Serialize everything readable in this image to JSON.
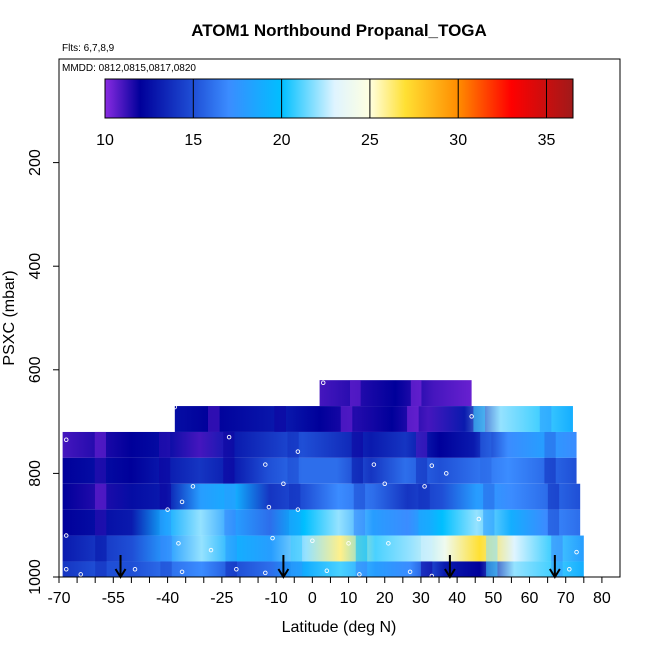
{
  "chart_data": {
    "type": "heatmap",
    "title": "ATOM1 Northbound Propanal_TOGA",
    "flights_label": "Flts: 6,7,8,9",
    "dates_label": "MMDD: 0812,0815,0817,0820",
    "xlabel": "Latitude (deg N)",
    "ylabel": "PSXC (mbar)",
    "xlim": [
      -70,
      85
    ],
    "ylim": [
      1000,
      0
    ],
    "x_ticks": [
      -70,
      -55,
      -40,
      -25,
      -10,
      0,
      10,
      20,
      30,
      40,
      50,
      60,
      70,
      80
    ],
    "y_ticks": [
      200,
      400,
      600,
      800,
      1000
    ],
    "colorbar": {
      "min": 10,
      "max": 36.5,
      "ticks": [
        10,
        15,
        20,
        25,
        30,
        35
      ],
      "stops": [
        {
          "v": 10,
          "c": "#8a2be2"
        },
        {
          "v": 12,
          "c": "#00009a"
        },
        {
          "v": 15,
          "c": "#1f4fd6"
        },
        {
          "v": 17,
          "c": "#3b8cff"
        },
        {
          "v": 20,
          "c": "#00bfff"
        },
        {
          "v": 23,
          "c": "#dff4ff"
        },
        {
          "v": 25,
          "c": "#ffffe0"
        },
        {
          "v": 27,
          "c": "#ffe033"
        },
        {
          "v": 30,
          "c": "#ff8c00"
        },
        {
          "v": 33,
          "c": "#ff0000"
        },
        {
          "v": 36.5,
          "c": "#a01a1a"
        }
      ]
    },
    "bands": [
      {
        "p_top": 620,
        "p_bot": 670,
        "x0": 2,
        "x1": 44,
        "values": [
          11,
          11.5,
          12,
          11,
          10.5
        ]
      },
      {
        "p_top": 670,
        "p_bot": 720,
        "x0": -38,
        "x1": 72,
        "values": [
          12.5,
          12,
          12.5,
          13,
          12,
          11.5,
          12,
          11,
          13,
          22,
          21,
          19
        ]
      },
      {
        "p_top": 720,
        "p_bot": 770,
        "x0": -69,
        "x1": 73,
        "values": [
          11,
          11.5,
          12,
          12.5,
          11,
          13,
          14,
          15,
          14,
          13,
          14,
          12,
          13,
          17,
          18,
          17
        ]
      },
      {
        "p_top": 770,
        "p_bot": 820,
        "x0": -69,
        "x1": 73,
        "values": [
          12,
          12.5,
          12,
          13,
          14,
          13,
          15,
          16,
          16,
          14,
          16,
          15,
          16,
          17,
          16,
          15
        ]
      },
      {
        "p_top": 820,
        "p_bot": 870,
        "x0": -69,
        "x1": 74,
        "values": [
          12,
          11.5,
          12.5,
          13,
          18,
          19,
          14,
          15,
          17,
          16,
          14,
          15,
          18,
          17,
          16,
          15
        ]
      },
      {
        "p_top": 870,
        "p_bot": 920,
        "x0": -69,
        "x1": 74,
        "values": [
          12,
          12.5,
          13,
          19,
          22,
          18,
          16,
          20,
          22,
          18,
          17,
          20,
          22,
          19,
          17,
          16
        ]
      },
      {
        "p_top": 920,
        "p_bot": 970,
        "x0": -69,
        "x1": 75,
        "values": [
          13,
          14,
          15,
          18,
          22,
          19,
          18,
          22,
          26,
          21,
          22,
          24,
          27,
          23,
          21,
          18
        ]
      },
      {
        "p_top": 970,
        "p_bot": 1000,
        "x0": -69,
        "x1": 75,
        "values": [
          14,
          15,
          15,
          16,
          17,
          15,
          16,
          19,
          21,
          18,
          17,
          13,
          12,
          22,
          21,
          19
        ]
      }
    ],
    "arrows_lat": [
      -53,
      -8,
      38,
      67
    ],
    "sample_points": [
      {
        "lat": -38,
        "p": 672
      },
      {
        "lat": 3,
        "p": 625
      },
      {
        "lat": 44,
        "p": 690
      },
      {
        "lat": -68,
        "p": 735
      },
      {
        "lat": -23,
        "p": 730
      },
      {
        "lat": -4,
        "p": 758
      },
      {
        "lat": -13,
        "p": 783
      },
      {
        "lat": 17,
        "p": 783
      },
      {
        "lat": 33,
        "p": 785
      },
      {
        "lat": 37,
        "p": 800
      },
      {
        "lat": -8,
        "p": 820
      },
      {
        "lat": 20,
        "p": 820
      },
      {
        "lat": 31,
        "p": 825
      },
      {
        "lat": -33,
        "p": 825
      },
      {
        "lat": -36,
        "p": 855
      },
      {
        "lat": -40,
        "p": 870
      },
      {
        "lat": -12,
        "p": 865
      },
      {
        "lat": -4,
        "p": 870
      },
      {
        "lat": 46,
        "p": 888
      },
      {
        "lat": -68,
        "p": 920
      },
      {
        "lat": -37,
        "p": 935
      },
      {
        "lat": -28,
        "p": 948
      },
      {
        "lat": -11,
        "p": 925
      },
      {
        "lat": 0,
        "p": 930
      },
      {
        "lat": 10,
        "p": 935
      },
      {
        "lat": 21,
        "p": 935
      },
      {
        "lat": 73,
        "p": 952
      },
      {
        "lat": -68,
        "p": 985
      },
      {
        "lat": -64,
        "p": 995
      },
      {
        "lat": -49,
        "p": 985
      },
      {
        "lat": -36,
        "p": 990
      },
      {
        "lat": -21,
        "p": 985
      },
      {
        "lat": -13,
        "p": 992
      },
      {
        "lat": 4,
        "p": 988
      },
      {
        "lat": 13,
        "p": 995
      },
      {
        "lat": 27,
        "p": 990
      },
      {
        "lat": 33,
        "p": 998
      },
      {
        "lat": 71,
        "p": 985
      }
    ]
  }
}
